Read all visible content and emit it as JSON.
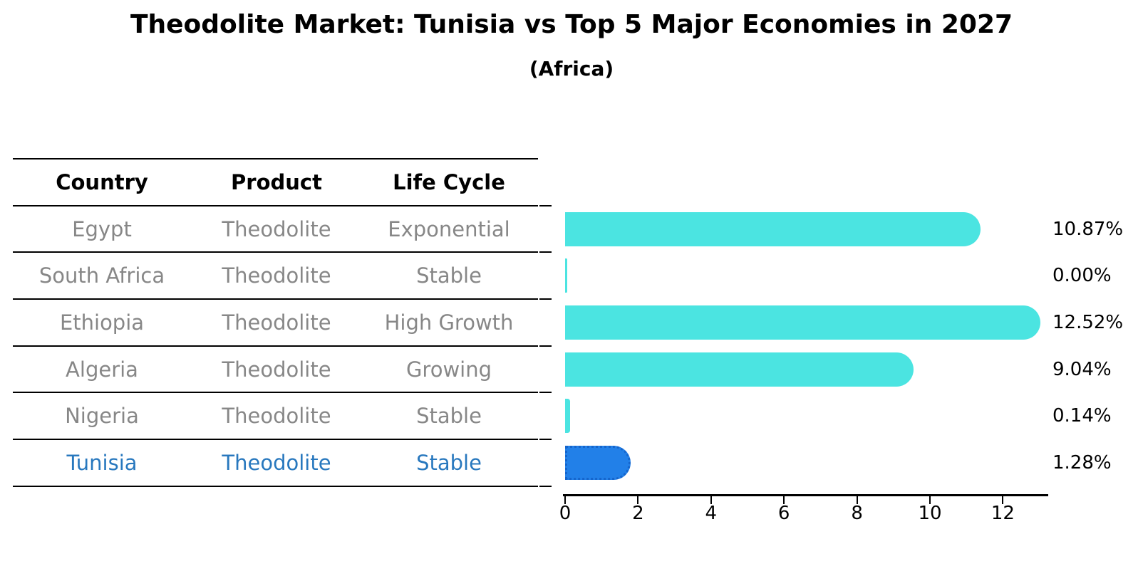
{
  "title": "Theodolite Market: Tunisia vs Top 5 Major Economies in 2027",
  "subtitle": "(Africa)",
  "table": {
    "headers": [
      "Country",
      "Product",
      "Life Cycle"
    ],
    "rows": [
      {
        "country": "Egypt",
        "product": "Theodolite",
        "life_cycle": "Exponential",
        "highlighted": false
      },
      {
        "country": "South Africa",
        "product": "Theodolite",
        "life_cycle": "Stable",
        "highlighted": false
      },
      {
        "country": "Ethiopia",
        "product": "Theodolite",
        "life_cycle": "High Growth",
        "highlighted": false
      },
      {
        "country": "Algeria",
        "product": "Theodolite",
        "life_cycle": "Growing",
        "highlighted": false
      },
      {
        "country": "Nigeria",
        "product": "Theodolite",
        "life_cycle": "Stable",
        "highlighted": false
      },
      {
        "country": "Tunisia",
        "product": "Theodolite",
        "life_cycle": "Stable",
        "highlighted": true
      }
    ]
  },
  "chart_data": {
    "type": "bar",
    "orientation": "horizontal",
    "title": "Theodolite Market: Tunisia vs Top 5 Major Economies in 2027",
    "subtitle": "(Africa)",
    "categories": [
      "Egypt",
      "South Africa",
      "Ethiopia",
      "Algeria",
      "Nigeria",
      "Tunisia"
    ],
    "values": [
      10.87,
      0.0,
      12.52,
      9.04,
      0.14,
      1.28
    ],
    "value_labels": [
      "10.87%",
      "0.00%",
      "12.52%",
      "9.04%",
      "0.14%",
      "1.28%"
    ],
    "xlabel": "",
    "ylabel": "",
    "xlim": [
      0,
      13.2
    ],
    "xticks": [
      0,
      2,
      4,
      6,
      8,
      10,
      12
    ],
    "grid": false,
    "legend": false,
    "highlight_index": 5
  },
  "colors": {
    "bar": "#4BE4E1",
    "highlight_bar": "#2280E8",
    "highlight_border": "#1565CC",
    "highlight_text": "#2878BE",
    "table_text": "#878787",
    "header_text": "#000000",
    "axis": "#000000"
  }
}
